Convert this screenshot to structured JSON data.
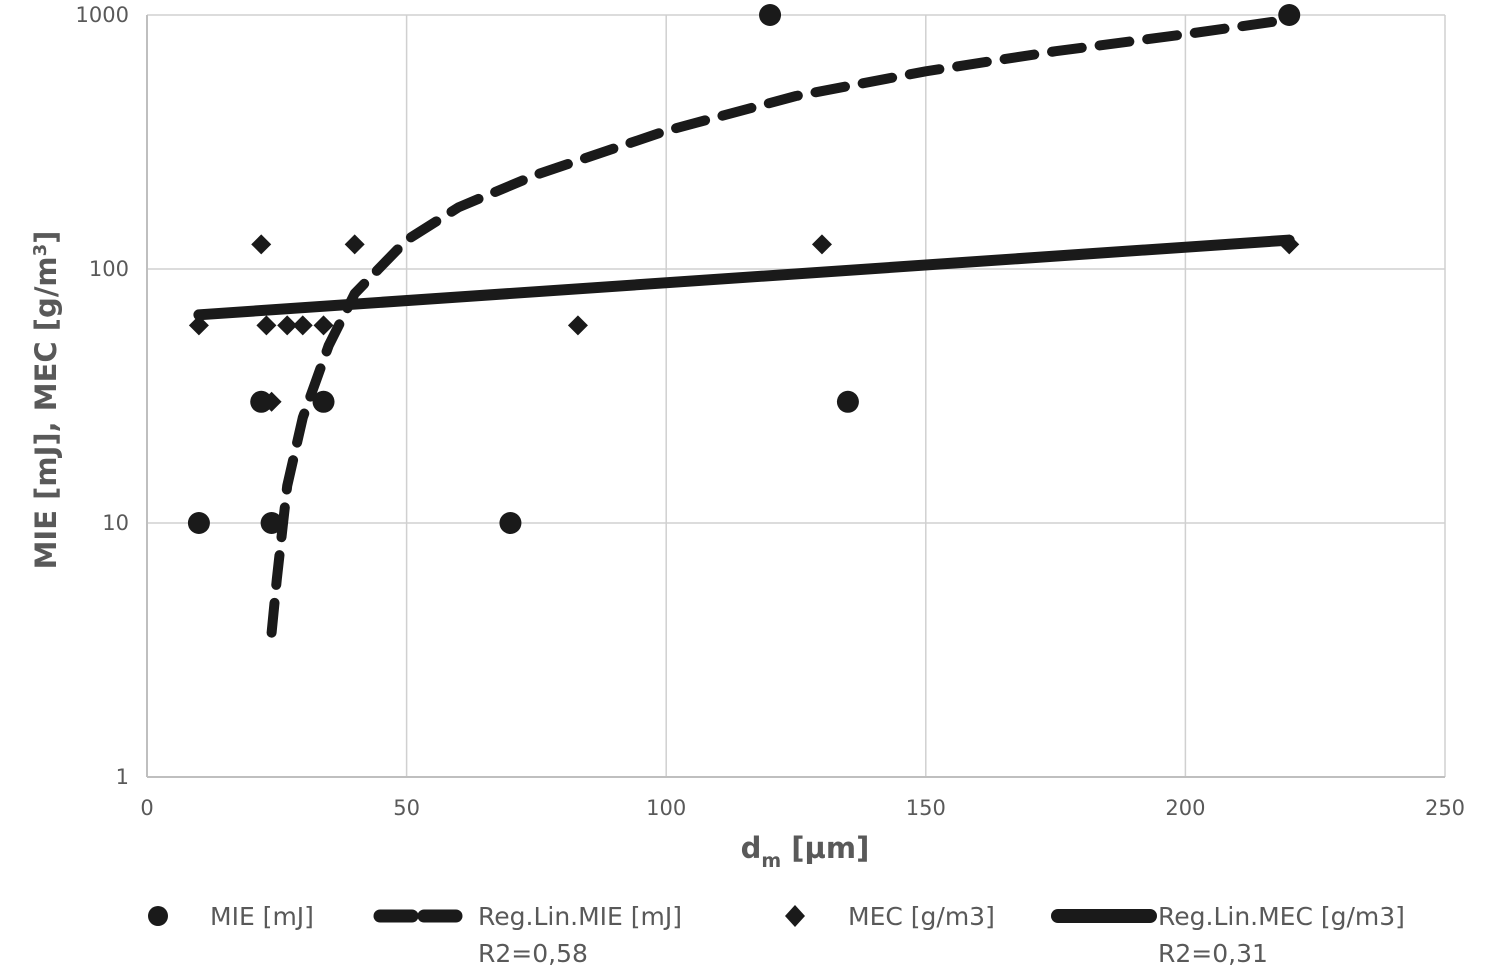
{
  "chart_data": {
    "type": "scatter",
    "xlabel": "d",
    "xlabel_subscript": "m",
    "xlabel_unit": "[µm]",
    "ylabel": "MIE [mJ], MEC [g/m",
    "ylabel_superscript": "3",
    "ylabel_end": "]",
    "xlim": [
      0,
      250
    ],
    "ylim": [
      1,
      1000
    ],
    "y_scale": "log",
    "grid": true,
    "legend_position": "bottom",
    "x_ticks": [
      "0",
      "50",
      "100",
      "150",
      "200",
      "250"
    ],
    "y_ticks": [
      "1",
      "10",
      "100",
      "1000"
    ],
    "series": [
      {
        "name": "MIE [mJ]",
        "kind": "points",
        "marker": "circle",
        "color": "#1a1a1a",
        "points": [
          [
            10,
            10
          ],
          [
            22,
            30
          ],
          [
            24,
            10
          ],
          [
            34,
            30
          ],
          [
            70,
            10
          ],
          [
            120,
            1000
          ],
          [
            135,
            30
          ],
          [
            220,
            1000
          ]
        ]
      },
      {
        "name": "Reg.Lin.MIE [mJ]",
        "name_line2": "R2=0,58",
        "kind": "line",
        "style": "dashed",
        "color": "#1a1a1a",
        "points": [
          [
            24,
            3.7
          ],
          [
            25,
            6
          ],
          [
            27,
            14
          ],
          [
            30,
            26
          ],
          [
            35,
            50
          ],
          [
            40,
            80
          ],
          [
            50,
            130
          ],
          [
            60,
            175
          ],
          [
            75,
            235
          ],
          [
            100,
            350
          ],
          [
            125,
            480
          ],
          [
            150,
            600
          ],
          [
            175,
            720
          ],
          [
            200,
            840
          ],
          [
            220,
            960
          ]
        ]
      },
      {
        "name": "MEC [g/m3]",
        "kind": "points",
        "marker": "diamond",
        "color": "#1a1a1a",
        "points": [
          [
            10,
            60
          ],
          [
            22,
            125
          ],
          [
            23,
            60
          ],
          [
            24,
            30
          ],
          [
            27,
            60
          ],
          [
            30,
            60
          ],
          [
            34,
            60
          ],
          [
            40,
            125
          ],
          [
            83,
            60
          ],
          [
            130,
            125
          ],
          [
            220,
            125
          ]
        ]
      },
      {
        "name": "Reg.Lin.MEC [g/m3]",
        "name_line2": "R2=0,31",
        "kind": "line",
        "style": "solid",
        "color": "#1a1a1a",
        "points": [
          [
            10,
            66
          ],
          [
            220,
            130
          ]
        ]
      }
    ]
  }
}
